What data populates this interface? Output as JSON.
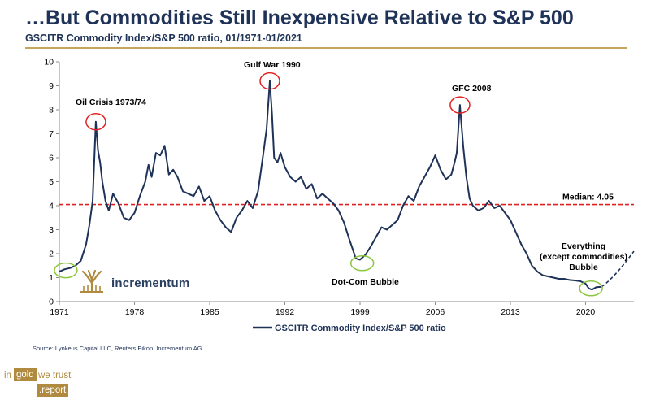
{
  "header": {
    "title": "…But Commodities Still Inexpensive Relative to S&P 500",
    "subtitle": "GSCITR Commodity Index/S&P 500 ratio, 01/1971-01/2021"
  },
  "footer": {
    "source": "Source: Lynkeus Capital LLC, Reuters Eikon, Incrementum AG",
    "brand": {
      "in": "in",
      "gold": "gold",
      "trust": "we trust",
      "report": ".report"
    },
    "logo_text": "incrementum"
  },
  "colors": {
    "title": "#1f3257",
    "series": "#1f3257",
    "median": "#e02020",
    "circle_red": "#e02020",
    "circle_green": "#8cc63f",
    "accent": "#b08a3e"
  },
  "chart_data": {
    "type": "line",
    "title": "GSCITR Commodity Index/S&P 500 ratio",
    "xlabel": "",
    "ylabel": "",
    "xlim": [
      1971,
      2024.5
    ],
    "ylim": [
      0,
      10
    ],
    "x_ticks": [
      1971,
      1978,
      1985,
      1992,
      1999,
      2006,
      2013,
      2020
    ],
    "y_ticks": [
      0,
      1,
      2,
      3,
      4,
      5,
      6,
      7,
      8,
      9,
      10
    ],
    "legend": "GSCITR Commodity Index/S&P 500 ratio",
    "median": {
      "value": 4.05,
      "label": "Median: 4.05"
    },
    "series": [
      {
        "name": "GSCITR Commodity Index/S&P 500 ratio",
        "x": [
          1971,
          1971.5,
          1972,
          1972.5,
          1973,
          1973.5,
          1973.8,
          1974.1,
          1974.4,
          1974.6,
          1974.8,
          1975,
          1975.3,
          1975.6,
          1976,
          1976.5,
          1977,
          1977.5,
          1978,
          1978.5,
          1979,
          1979.3,
          1979.6,
          1980,
          1980.4,
          1980.8,
          1981.2,
          1981.6,
          1982,
          1982.5,
          1983,
          1983.5,
          1984,
          1984.5,
          1985,
          1985.5,
          1986,
          1986.5,
          1987,
          1987.5,
          1988,
          1988.5,
          1989,
          1989.5,
          1990,
          1990.3,
          1990.6,
          1990.8,
          1991,
          1991.3,
          1991.6,
          1992,
          1992.5,
          1993,
          1993.5,
          1994,
          1994.5,
          1995,
          1995.5,
          1996,
          1996.5,
          1997,
          1997.5,
          1998,
          1998.3,
          1998.6,
          1999,
          1999.5,
          2000,
          2000.5,
          2001,
          2001.5,
          2002,
          2002.5,
          2003,
          2003.5,
          2004,
          2004.5,
          2005,
          2005.5,
          2006,
          2006.5,
          2007,
          2007.5,
          2007.8,
          2008,
          2008.3,
          2008.6,
          2008.9,
          2009.2,
          2009.5,
          2010,
          2010.5,
          2011,
          2011.5,
          2012,
          2012.5,
          2013,
          2013.5,
          2014,
          2014.5,
          2015,
          2015.5,
          2016,
          2016.5,
          2017,
          2017.5,
          2018,
          2018.5,
          2019,
          2019.5,
          2020,
          2020.3,
          2020.6,
          2021,
          2021.5
        ],
        "values": [
          1.25,
          1.35,
          1.4,
          1.5,
          1.7,
          2.4,
          3.2,
          4.2,
          7.5,
          6.3,
          5.8,
          5.0,
          4.2,
          3.8,
          4.5,
          4.1,
          3.5,
          3.4,
          3.7,
          4.4,
          5.0,
          5.7,
          5.2,
          6.2,
          6.1,
          6.5,
          5.3,
          5.5,
          5.2,
          4.6,
          4.5,
          4.4,
          4.8,
          4.2,
          4.4,
          3.8,
          3.4,
          3.1,
          2.9,
          3.5,
          3.8,
          4.2,
          3.9,
          4.6,
          6.2,
          7.2,
          9.2,
          7.8,
          6.0,
          5.8,
          6.2,
          5.6,
          5.2,
          5.0,
          5.2,
          4.7,
          4.9,
          4.3,
          4.5,
          4.3,
          4.1,
          3.8,
          3.3,
          2.6,
          2.2,
          1.8,
          1.75,
          1.95,
          2.3,
          2.7,
          3.1,
          3.0,
          3.2,
          3.4,
          4.0,
          4.4,
          4.2,
          4.8,
          5.2,
          5.6,
          6.1,
          5.5,
          5.1,
          5.3,
          5.8,
          6.2,
          8.2,
          6.5,
          5.2,
          4.3,
          4.0,
          3.8,
          3.9,
          4.2,
          3.9,
          4.0,
          3.7,
          3.4,
          2.9,
          2.4,
          2.0,
          1.5,
          1.25,
          1.1,
          1.05,
          1.0,
          0.95,
          0.95,
          0.9,
          0.88,
          0.85,
          0.75,
          0.55,
          0.5,
          0.6,
          0.62
        ],
        "projection": {
          "x": [
            2021.5,
            2022.5,
            2023.5,
            2024.5
          ],
          "values": [
            0.62,
            0.95,
            1.5,
            2.1
          ]
        }
      }
    ],
    "annotations": [
      {
        "text": "Oil Crisis 1973/74",
        "x": 1974.4,
        "y": 7.5,
        "marker": "red"
      },
      {
        "text": "Gulf War 1990",
        "x": 1990.6,
        "y": 9.2,
        "marker": "red"
      },
      {
        "text": "GFC 2008",
        "x": 2008.3,
        "y": 8.2,
        "marker": "red"
      },
      {
        "text": "Dot-Com Bubble",
        "x": 1999.2,
        "y": 1.6,
        "marker": "green"
      },
      {
        "text": "Everything (except commodities) Bubble",
        "x": 2020.5,
        "y": 0.55,
        "marker": "green"
      },
      {
        "text": "",
        "x": 1971.6,
        "y": 1.3,
        "marker": "green"
      }
    ],
    "annotation_lines": {
      "everything": [
        "Everything",
        "(except commodities)",
        "Bubble"
      ]
    }
  }
}
